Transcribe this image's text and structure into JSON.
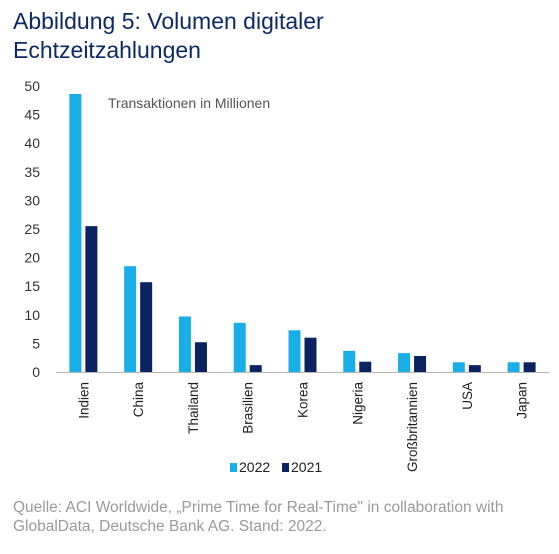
{
  "title_line1": "Abbildung 5: Volumen digitaler",
  "title_line2": "Echtzeitzahlungen",
  "source": "Quelle: ACI Worldwide, „Prime Time for Real-Time\" in collaboration with GlobalData, Deutsche Bank AG. Stand: 2022.",
  "colors": {
    "s2022": "#19aee8",
    "s2021": "#0b2361",
    "title": "#0b2a66",
    "axis": "#b5b5b5"
  },
  "chart_data": {
    "type": "bar",
    "annotation": "Transaktionen in Millionen",
    "categories": [
      "Indien",
      "China",
      "Thailand",
      "Brasilien",
      "Korea",
      "Nigeria",
      "Großbritannien",
      "USA",
      "Japan"
    ],
    "series": [
      {
        "name": "2022",
        "values": [
          48.6,
          18.5,
          9.7,
          8.6,
          7.3,
          3.7,
          3.3,
          1.7,
          1.7
        ]
      },
      {
        "name": "2021",
        "values": [
          25.5,
          15.7,
          5.2,
          1.2,
          6.0,
          1.8,
          2.8,
          1.2,
          1.7
        ]
      }
    ],
    "yticks": [
      0,
      5,
      10,
      15,
      20,
      25,
      30,
      35,
      40,
      45,
      50
    ],
    "ylim": [
      0,
      50
    ],
    "grid": false,
    "legend_position": "bottom-center"
  }
}
